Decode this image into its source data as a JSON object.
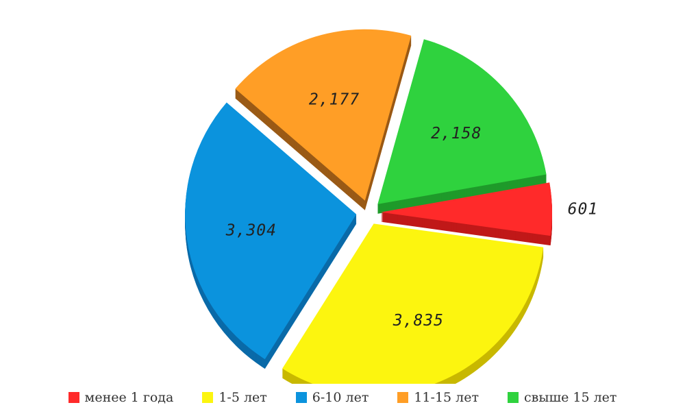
{
  "chart_data": {
    "type": "pie",
    "title": "",
    "slices": [
      {
        "label": "менее 1 года",
        "value": 601,
        "value_label": "601",
        "color": "#ff2a2a",
        "side_color": "#c01818"
      },
      {
        "label": "1-5 лет",
        "value": 3835,
        "value_label": "3,835",
        "color": "#fcf50f",
        "side_color": "#c8b800"
      },
      {
        "label": "6-10 лет",
        "value": 3304,
        "value_label": "3,304",
        "color": "#0b93dd",
        "side_color": "#0a6aa8"
      },
      {
        "label": "11-15 лет",
        "value": 2177,
        "value_label": "2,177",
        "color": "#ff9e26",
        "side_color": "#9a5a16"
      },
      {
        "label": "свыше 15 лет",
        "value": 2158,
        "value_label": "2,158",
        "color": "#2fd23e",
        "side_color": "#1f9a2a"
      }
    ],
    "legend_position": "bottom",
    "exploded": true,
    "style": "3d"
  }
}
